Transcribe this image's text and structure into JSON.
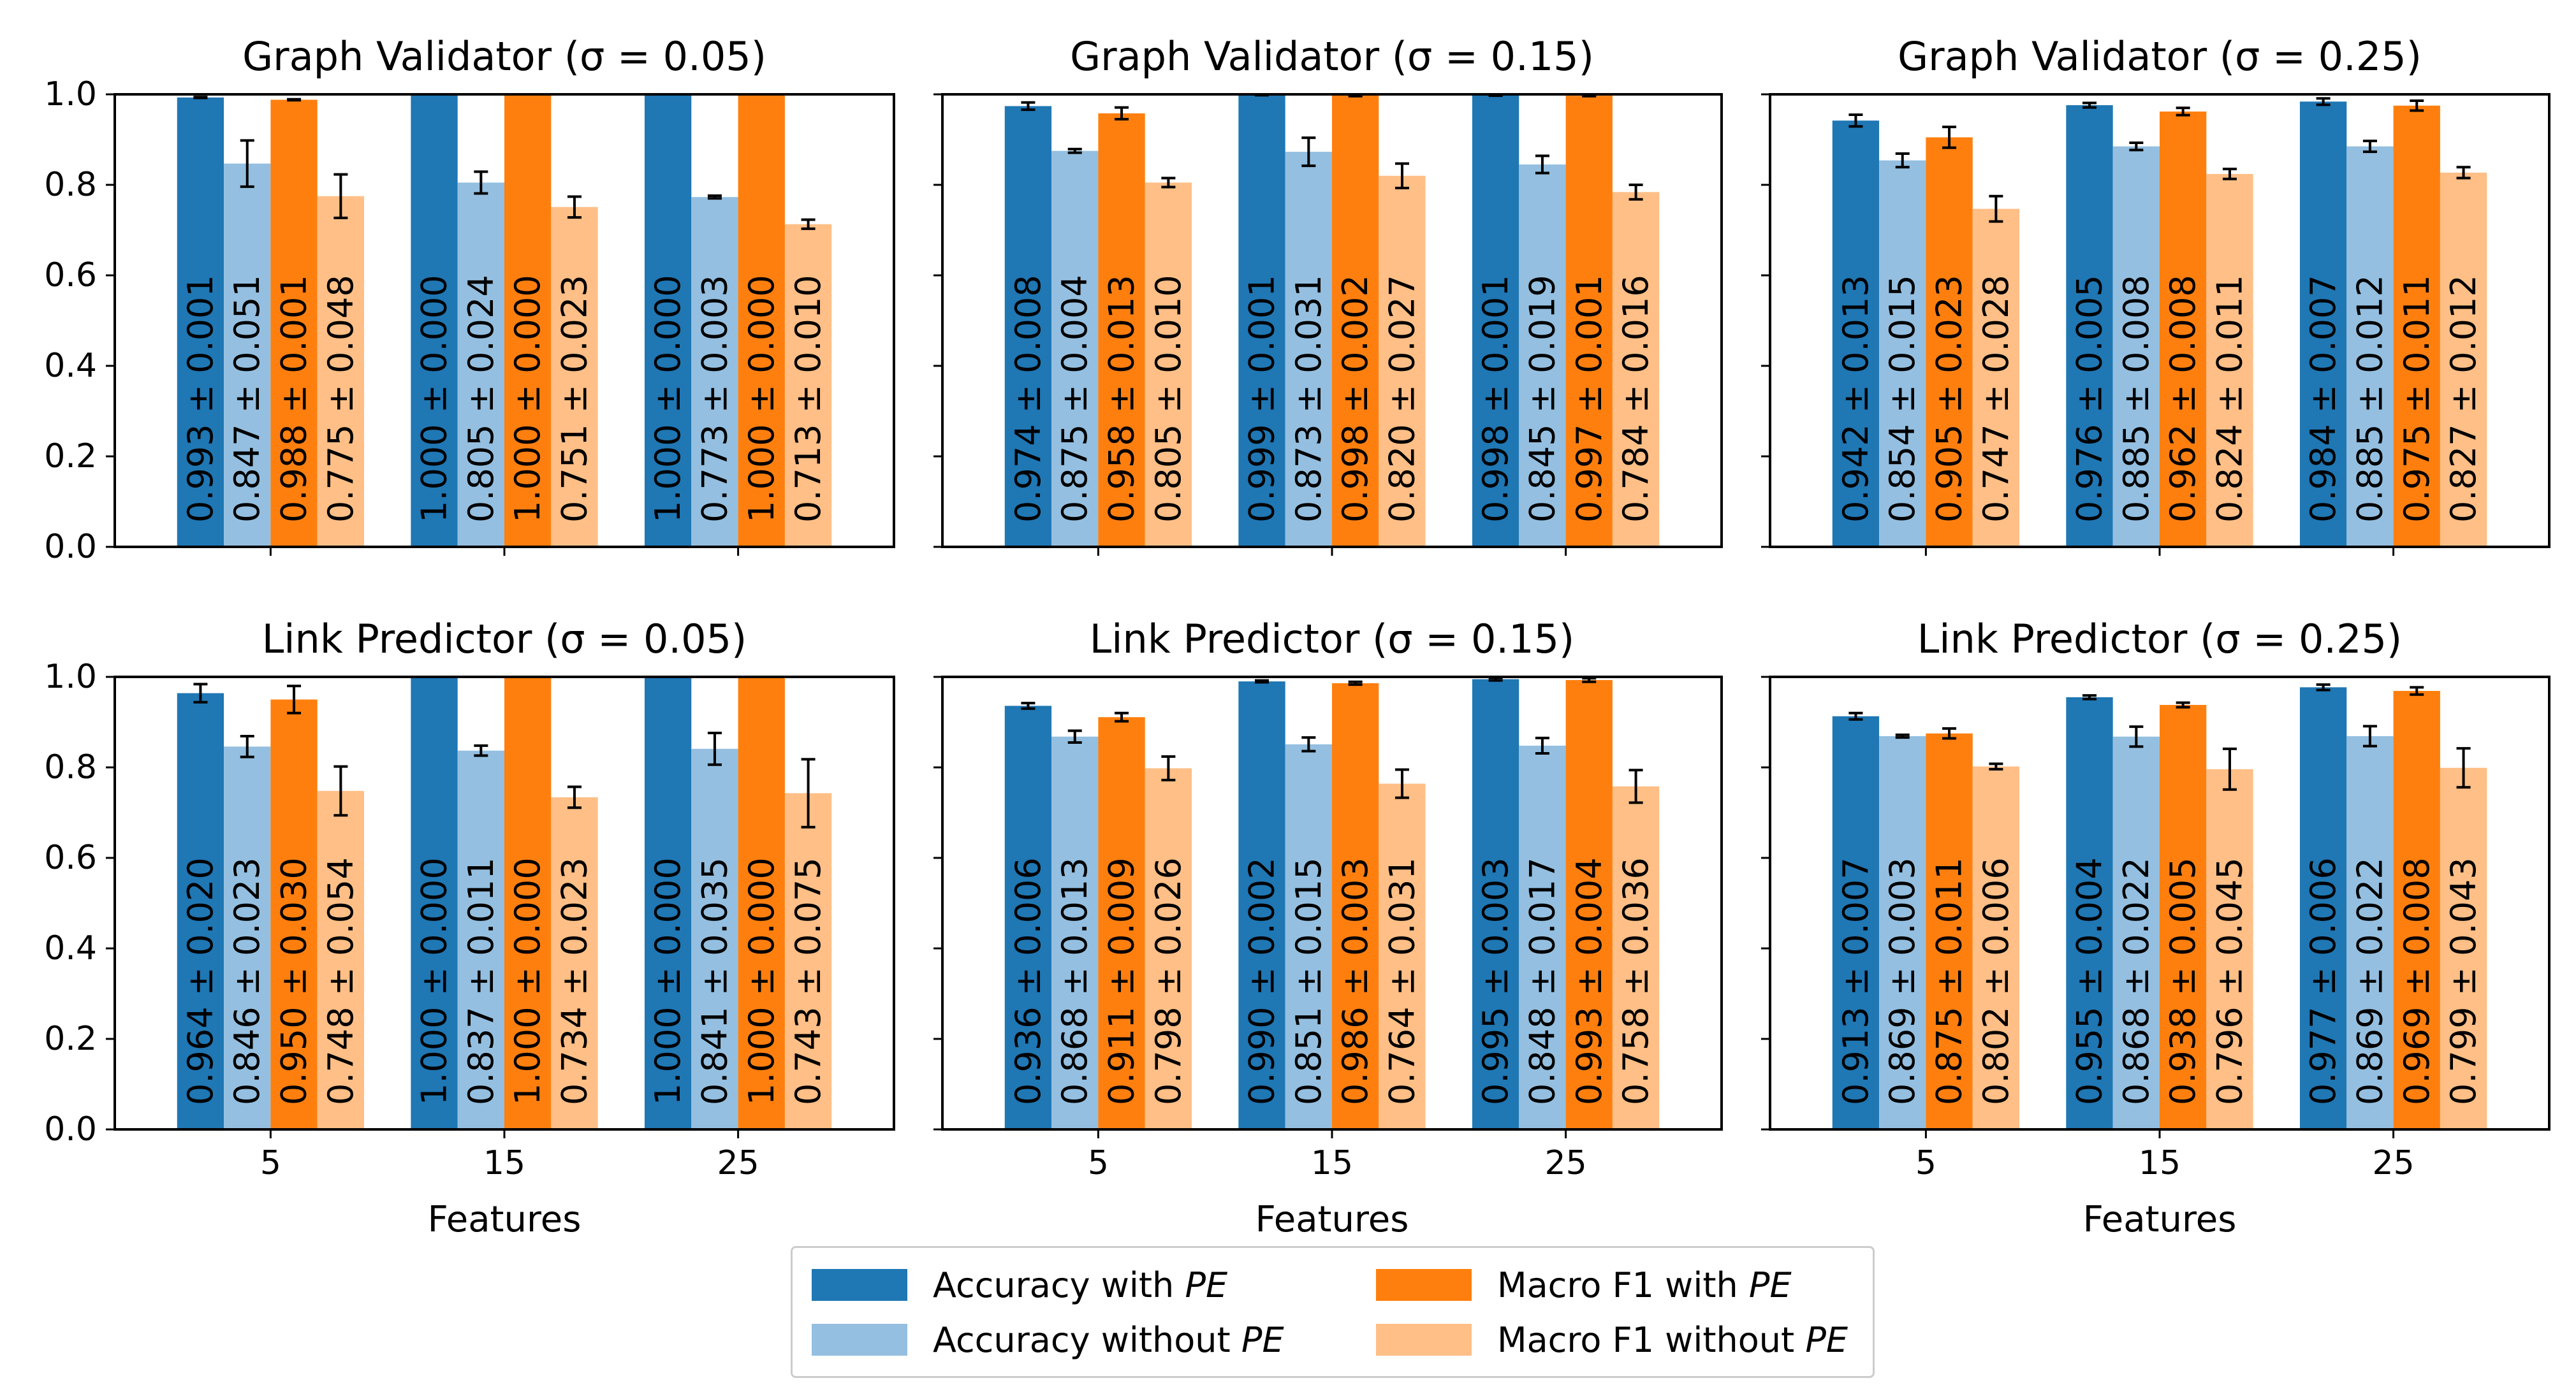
{
  "chart_data": {
    "type": "bar",
    "xlabel": "Features",
    "categories": [
      "5",
      "15",
      "25"
    ],
    "ylim": [
      0,
      1.0
    ],
    "yticks": [
      "0.0",
      "0.2",
      "0.4",
      "0.6",
      "0.8",
      "1.0"
    ],
    "legend": {
      "location": "bottom-center",
      "items": [
        {
          "label": "Accuracy with ",
          "label_em": "PE",
          "color": "#1f77b4"
        },
        {
          "label": "Accuracy without ",
          "label_em": "PE",
          "color": "#94bfe0"
        },
        {
          "label": "Macro F1 with ",
          "label_em": "PE",
          "color": "#ff7f0e"
        },
        {
          "label": "Macro F1 without ",
          "label_em": "PE",
          "color": "#ffbf86"
        }
      ]
    },
    "series_colors": [
      "#1f77b4",
      "#94bfe0",
      "#ff7f0e",
      "#ffbf86"
    ],
    "panels": [
      {
        "title": "Graph Validator (σ = 0.05)",
        "groups": [
          [
            [
              0.993,
              0.001
            ],
            [
              0.847,
              0.051
            ],
            [
              0.988,
              0.001
            ],
            [
              0.775,
              0.048
            ]
          ],
          [
            [
              1.0,
              0.0
            ],
            [
              0.805,
              0.024
            ],
            [
              1.0,
              0.0
            ],
            [
              0.751,
              0.023
            ]
          ],
          [
            [
              1.0,
              0.0
            ],
            [
              0.773,
              0.003
            ],
            [
              1.0,
              0.0
            ],
            [
              0.713,
              0.01
            ]
          ]
        ]
      },
      {
        "title": "Graph Validator (σ = 0.15)",
        "groups": [
          [
            [
              0.974,
              0.008
            ],
            [
              0.875,
              0.004
            ],
            [
              0.958,
              0.013
            ],
            [
              0.805,
              0.01
            ]
          ],
          [
            [
              0.999,
              0.001
            ],
            [
              0.873,
              0.031
            ],
            [
              0.998,
              0.002
            ],
            [
              0.82,
              0.027
            ]
          ],
          [
            [
              0.998,
              0.001
            ],
            [
              0.845,
              0.019
            ],
            [
              0.997,
              0.001
            ],
            [
              0.784,
              0.016
            ]
          ]
        ]
      },
      {
        "title": "Graph Validator (σ = 0.25)",
        "groups": [
          [
            [
              0.942,
              0.013
            ],
            [
              0.854,
              0.015
            ],
            [
              0.905,
              0.023
            ],
            [
              0.747,
              0.028
            ]
          ],
          [
            [
              0.976,
              0.005
            ],
            [
              0.885,
              0.008
            ],
            [
              0.962,
              0.008
            ],
            [
              0.824,
              0.011
            ]
          ],
          [
            [
              0.984,
              0.007
            ],
            [
              0.885,
              0.012
            ],
            [
              0.975,
              0.011
            ],
            [
              0.827,
              0.012
            ]
          ]
        ]
      },
      {
        "title": "Link Predictor (σ = 0.05)",
        "groups": [
          [
            [
              0.964,
              0.02
            ],
            [
              0.846,
              0.023
            ],
            [
              0.95,
              0.03
            ],
            [
              0.748,
              0.054
            ]
          ],
          [
            [
              1.0,
              0.0
            ],
            [
              0.837,
              0.011
            ],
            [
              1.0,
              0.0
            ],
            [
              0.734,
              0.023
            ]
          ],
          [
            [
              1.0,
              0.0
            ],
            [
              0.841,
              0.035
            ],
            [
              1.0,
              0.0
            ],
            [
              0.743,
              0.075
            ]
          ]
        ]
      },
      {
        "title": "Link Predictor (σ = 0.15)",
        "groups": [
          [
            [
              0.936,
              0.006
            ],
            [
              0.868,
              0.013
            ],
            [
              0.911,
              0.009
            ],
            [
              0.798,
              0.026
            ]
          ],
          [
            [
              0.99,
              0.002
            ],
            [
              0.851,
              0.015
            ],
            [
              0.986,
              0.003
            ],
            [
              0.764,
              0.031
            ]
          ],
          [
            [
              0.995,
              0.003
            ],
            [
              0.848,
              0.017
            ],
            [
              0.993,
              0.004
            ],
            [
              0.758,
              0.036
            ]
          ]
        ]
      },
      {
        "title": "Link Predictor (σ = 0.25)",
        "groups": [
          [
            [
              0.913,
              0.007
            ],
            [
              0.869,
              0.003
            ],
            [
              0.875,
              0.011
            ],
            [
              0.802,
              0.006
            ]
          ],
          [
            [
              0.955,
              0.004
            ],
            [
              0.868,
              0.022
            ],
            [
              0.938,
              0.005
            ],
            [
              0.796,
              0.045
            ]
          ],
          [
            [
              0.977,
              0.006
            ],
            [
              0.869,
              0.022
            ],
            [
              0.969,
              0.008
            ],
            [
              0.799,
              0.043
            ]
          ]
        ]
      }
    ]
  }
}
